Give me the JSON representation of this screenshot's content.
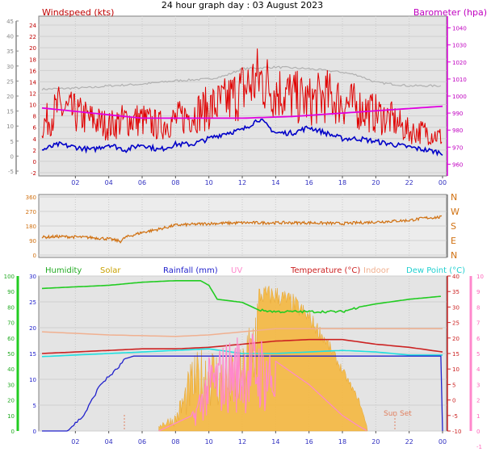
{
  "title": "24 hour graph day : 03 August 2023",
  "colors": {
    "wind": "#e00000",
    "gust": "#e00000",
    "avg": "#0000c8",
    "baro": "#e000e0",
    "baroline": "#b0b0b0",
    "dir": "#d07010",
    "humidity": "#22cc22",
    "solar": "#f5b840",
    "rain": "#2222cc",
    "uv": "#ff88cc",
    "temp": "#cc2222",
    "indoor": "#f0b090",
    "dew": "#20e0e0",
    "plotbg": "#e4e4e4",
    "axisblue": "#3030c0"
  },
  "chart_data": [
    {
      "type": "line",
      "title": "24 hour graph day : 03 August 2023",
      "x_ticks": [
        "02",
        "04",
        "06",
        "08",
        "10",
        "12",
        "14",
        "16",
        "18",
        "20",
        "22",
        "00"
      ],
      "y_left_label": "Windspeed (kts)",
      "y_left_ticks": [
        "-2",
        "0",
        "2",
        "4",
        "6",
        "8",
        "10",
        "12",
        "14",
        "16",
        "18",
        "20",
        "22",
        "24"
      ],
      "y_left_outer_ticks": [
        "-5",
        "0",
        "5",
        "10",
        "15",
        "20",
        "25",
        "30",
        "35",
        "40",
        "45"
      ],
      "y_right_label": "Barometer (hpa)",
      "y_right_ticks": [
        "960",
        "970",
        "980",
        "990",
        "1000",
        "1010",
        "1020",
        "1030",
        "1040"
      ],
      "ylim_left": [
        -2,
        25
      ],
      "ylim_right": [
        955,
        1045
      ],
      "series": [
        {
          "name": "wind gust",
          "hours": [
            0,
            1,
            2,
            3,
            4,
            5,
            6,
            7,
            8,
            9,
            10,
            11,
            12,
            13,
            14,
            15,
            16,
            17,
            18,
            19,
            20,
            21,
            22,
            23,
            24
          ],
          "values": [
            6,
            9,
            8,
            7,
            6,
            7,
            7,
            6,
            7,
            8,
            9,
            10,
            12,
            14,
            12,
            11,
            10,
            11,
            10,
            9,
            8,
            7,
            5,
            5,
            4
          ]
        },
        {
          "name": "wind average",
          "hours": [
            0,
            1,
            2,
            3,
            4,
            5,
            6,
            7,
            8,
            9,
            10,
            11,
            12,
            13,
            14,
            15,
            16,
            17,
            18,
            19,
            20,
            21,
            22,
            23,
            24
          ],
          "values": [
            2,
            3,
            2.5,
            2,
            3,
            2,
            3,
            2,
            3,
            3,
            4,
            5,
            5.5,
            7.5,
            5,
            5,
            6,
            5,
            4,
            4,
            3.5,
            3,
            2.5,
            2,
            1.5
          ]
        },
        {
          "name": "barometer",
          "hours": [
            0,
            3,
            6,
            9,
            12,
            15,
            18,
            21,
            24
          ],
          "values": [
            993,
            990,
            987,
            987,
            987,
            988,
            990,
            992,
            994
          ]
        },
        {
          "name": "barometer trace",
          "hours": [
            0,
            3,
            4,
            6,
            8,
            10,
            11,
            12,
            14,
            16,
            18,
            19,
            20,
            22,
            24
          ],
          "values": [
            1004,
            1005,
            1006,
            1007,
            1009,
            1010,
            1012,
            1016,
            1017,
            1016,
            1014,
            1012,
            1008,
            1006,
            1006
          ]
        }
      ]
    },
    {
      "type": "scatter",
      "title": "",
      "x_ticks": [
        "02",
        "04",
        "06",
        "08",
        "10",
        "12",
        "14",
        "16",
        "18",
        "20",
        "22",
        "00"
      ],
      "y_left_ticks": [
        "0",
        "90",
        "180",
        "270",
        "360"
      ],
      "y_right_ticks": [
        "N",
        "E",
        "S",
        "W",
        "N"
      ],
      "ylim": [
        0,
        360
      ],
      "series": [
        {
          "name": "wind direction",
          "hours": [
            0,
            1,
            2,
            3,
            4,
            4.7,
            5,
            6,
            7,
            8,
            10,
            12,
            14,
            16,
            18,
            20,
            22,
            23,
            24
          ],
          "values": [
            110,
            115,
            112,
            108,
            100,
            85,
            110,
            140,
            160,
            185,
            195,
            200,
            200,
            200,
            195,
            205,
            215,
            230,
            235
          ]
        }
      ]
    },
    {
      "type": "line",
      "title": "",
      "x_ticks": [
        "02",
        "04",
        "06",
        "08",
        "10",
        "12",
        "14",
        "16",
        "18",
        "20",
        "22",
        "00"
      ],
      "legend": [
        "Humidity",
        "Solar",
        "Rainfall (mm)",
        "UV",
        "Temperature (°C)",
        "Indoor",
        "Dew Point (°C)"
      ],
      "y_left_outer_ticks": [
        "0",
        "10",
        "20",
        "30",
        "40",
        "50",
        "60",
        "70",
        "80",
        "90",
        "100"
      ],
      "y_left_ticks": [
        "0",
        "5",
        "10",
        "15",
        "20",
        "25",
        "30"
      ],
      "y_right_ticks": [
        "-10",
        "-5",
        "0",
        "5",
        "10",
        "15",
        "20",
        "25",
        "30",
        "35",
        "40"
      ],
      "y_right_outer_ticks": [
        "-1",
        "0",
        "1",
        "2",
        "3",
        "4",
        "5",
        "6",
        "7",
        "8",
        "9",
        "10"
      ],
      "ylim_rain": [
        0,
        30
      ],
      "ylim_temp": [
        -10,
        40
      ],
      "annotation": "Sun Set",
      "series": [
        {
          "name": "Humidity",
          "hours": [
            0,
            2,
            4,
            6,
            8,
            9.5,
            10,
            10.5,
            12,
            13,
            14,
            16,
            18,
            19,
            20,
            22,
            24
          ],
          "values": [
            92,
            93,
            94,
            96,
            97,
            97,
            94,
            85,
            83,
            78,
            77,
            77,
            77,
            80,
            82,
            85,
            87
          ]
        },
        {
          "name": "Temperature (°C)",
          "hours": [
            0,
            2,
            4,
            6,
            8,
            10,
            12,
            14,
            16,
            18,
            20,
            22,
            24
          ],
          "values": [
            15,
            15.5,
            16,
            16.5,
            16.5,
            17,
            18,
            19,
            19.5,
            19.5,
            18,
            17,
            15.5
          ]
        },
        {
          "name": "Dew Point (°C)",
          "hours": [
            0,
            2,
            4,
            6,
            8,
            10,
            12,
            14,
            16,
            18,
            20,
            22,
            24
          ],
          "values": [
            14,
            14.5,
            15,
            15.5,
            16,
            16.5,
            15,
            15,
            15.5,
            16,
            15.5,
            14.5,
            14.5
          ]
        },
        {
          "name": "Indoor",
          "hours": [
            0,
            4,
            8,
            10,
            12,
            14,
            18,
            22,
            24
          ],
          "values": [
            22,
            21,
            20.5,
            21,
            22,
            23,
            23,
            23,
            23
          ]
        },
        {
          "name": "Rainfall (mm)",
          "hours": [
            0,
            1.5,
            2.5,
            3.5,
            4.5,
            5,
            5.5,
            24
          ],
          "values": [
            0,
            0,
            3,
            9,
            12,
            14,
            14.5,
            14.5
          ]
        },
        {
          "name": "UV",
          "hours": [
            7,
            9,
            10,
            11,
            12,
            13,
            14,
            16,
            18,
            19,
            19.5
          ],
          "values": [
            0,
            1,
            4,
            5,
            5.5,
            5.5,
            4.5,
            3,
            1,
            0.3,
            0
          ]
        },
        {
          "name": "Solar",
          "hours": [
            7,
            8,
            9,
            10,
            11,
            12,
            13,
            14,
            15,
            16,
            17,
            18,
            19,
            19.5
          ],
          "values": [
            5,
            10,
            40,
            50,
            40,
            45,
            90,
            90,
            85,
            75,
            60,
            40,
            20,
            2
          ]
        }
      ]
    }
  ]
}
